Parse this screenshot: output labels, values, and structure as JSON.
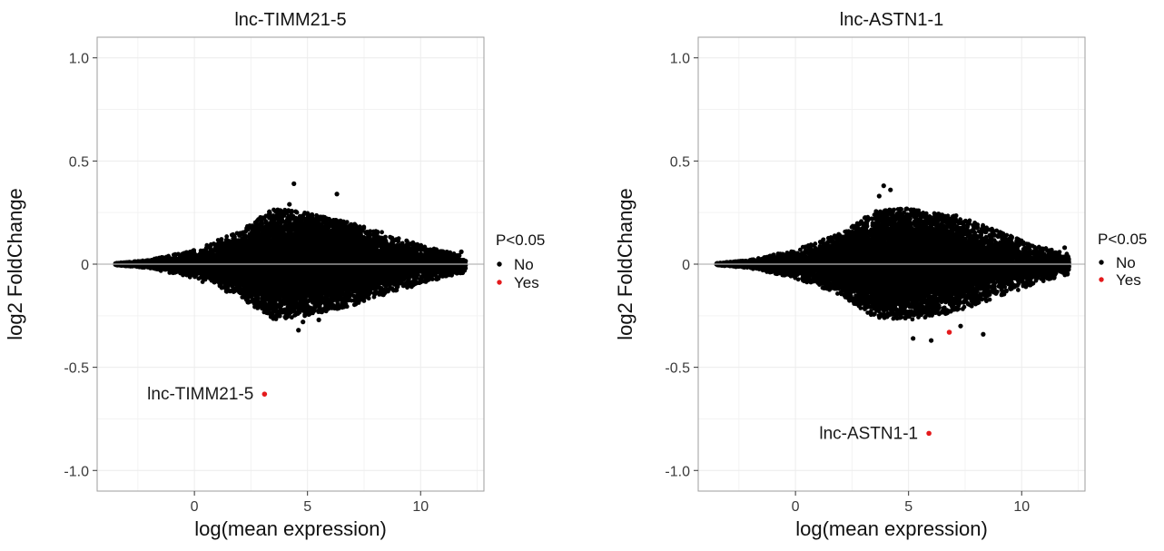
{
  "chart_data": [
    {
      "type": "scatter",
      "title": "lnc-TIMM21-5",
      "xlabel": "log(mean expression)",
      "ylabel": "log2 FoldChange",
      "xlim": [
        -4.3,
        12.8
      ],
      "ylim": [
        -1.1,
        1.1
      ],
      "x_ticks": [
        "0",
        "5",
        "10"
      ],
      "y_ticks": [
        "-1.0",
        "-0.5",
        "0",
        "0.5",
        "1.0"
      ],
      "x_tick_values": [
        0,
        5,
        10
      ],
      "y_tick_values": [
        -1.0,
        -0.5,
        0,
        0.5,
        1.0
      ],
      "grid": true,
      "reference_line": 0,
      "legend": {
        "title": "P<0.05",
        "position": "right",
        "items": [
          {
            "label": "No",
            "color": "#000000"
          },
          {
            "label": "Yes",
            "color": "#e41a1c"
          }
        ]
      },
      "series": [
        {
          "name": "No",
          "color": "#000000",
          "shape": "dense MA cloud centred on 0",
          "x_range": [
            -3.5,
            12.0
          ],
          "spread_profile": [
            {
              "x": -3.5,
              "spread": 0.005
            },
            {
              "x": -2.0,
              "spread": 0.02
            },
            {
              "x": 0.0,
              "spread": 0.07
            },
            {
              "x": 2.0,
              "spread": 0.16
            },
            {
              "x": 3.5,
              "spread": 0.27
            },
            {
              "x": 5.0,
              "spread": 0.25
            },
            {
              "x": 7.0,
              "spread": 0.2
            },
            {
              "x": 9.0,
              "spread": 0.13
            },
            {
              "x": 10.5,
              "spread": 0.08
            },
            {
              "x": 12.0,
              "spread": 0.04
            }
          ],
          "outliers": [
            {
              "x": 4.4,
              "y": 0.39
            },
            {
              "x": 6.3,
              "y": 0.34
            },
            {
              "x": 4.2,
              "y": 0.29
            },
            {
              "x": 4.8,
              "y": -0.28
            },
            {
              "x": 4.6,
              "y": -0.32
            },
            {
              "x": 5.5,
              "y": -0.27
            },
            {
              "x": 3.8,
              "y": 0.26
            },
            {
              "x": 11.8,
              "y": 0.06
            }
          ]
        },
        {
          "name": "Yes",
          "color": "#e41a1c",
          "points": [
            {
              "x": 3.1,
              "y": -0.63
            }
          ]
        }
      ],
      "annotations": [
        {
          "text": "lnc-TIMM21-5",
          "x": 3.1,
          "y": -0.63
        }
      ]
    },
    {
      "type": "scatter",
      "title": "lnc-ASTN1-1",
      "xlabel": "log(mean expression)",
      "ylabel": "log2 FoldChange",
      "xlim": [
        -4.3,
        12.8
      ],
      "ylim": [
        -1.1,
        1.1
      ],
      "x_ticks": [
        "0",
        "5",
        "10"
      ],
      "y_ticks": [
        "-1.0",
        "-0.5",
        "0",
        "0.5",
        "1.0"
      ],
      "x_tick_values": [
        0,
        5,
        10
      ],
      "y_tick_values": [
        -1.0,
        -0.5,
        0,
        0.5,
        1.0
      ],
      "grid": true,
      "reference_line": 0,
      "legend": {
        "title": "P<0.05",
        "position": "right",
        "items": [
          {
            "label": "No",
            "color": "#000000"
          },
          {
            "label": "Yes",
            "color": "#e41a1c"
          }
        ]
      },
      "series": [
        {
          "name": "No",
          "color": "#000000",
          "shape": "dense MA cloud centred on 0",
          "x_range": [
            -3.5,
            12.1
          ],
          "spread_profile": [
            {
              "x": -3.5,
              "spread": 0.005
            },
            {
              "x": -2.0,
              "spread": 0.02
            },
            {
              "x": 0.0,
              "spread": 0.07
            },
            {
              "x": 2.0,
              "spread": 0.15
            },
            {
              "x": 3.5,
              "spread": 0.26
            },
            {
              "x": 5.0,
              "spread": 0.27
            },
            {
              "x": 7.0,
              "spread": 0.24
            },
            {
              "x": 9.0,
              "spread": 0.16
            },
            {
              "x": 10.5,
              "spread": 0.1
            },
            {
              "x": 12.0,
              "spread": 0.05
            }
          ],
          "outliers": [
            {
              "x": 3.9,
              "y": 0.38
            },
            {
              "x": 4.2,
              "y": 0.36
            },
            {
              "x": 3.7,
              "y": 0.33
            },
            {
              "x": 6.0,
              "y": -0.37
            },
            {
              "x": 5.2,
              "y": -0.36
            },
            {
              "x": 7.3,
              "y": -0.3
            },
            {
              "x": 8.3,
              "y": -0.34
            },
            {
              "x": 11.9,
              "y": 0.08
            }
          ]
        },
        {
          "name": "Yes",
          "color": "#e41a1c",
          "points": [
            {
              "x": 6.8,
              "y": -0.33
            },
            {
              "x": 5.9,
              "y": -0.82
            }
          ]
        }
      ],
      "annotations": [
        {
          "text": "lnc-ASTN1-1",
          "x": 5.9,
          "y": -0.82
        }
      ]
    }
  ]
}
